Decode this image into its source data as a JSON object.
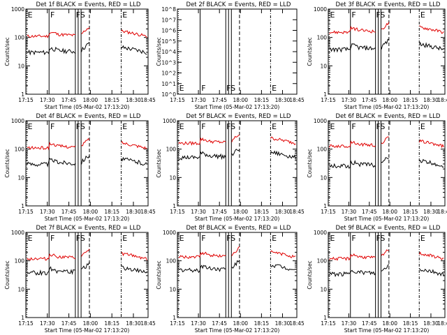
{
  "chart_data": {
    "type": "line",
    "panels": [
      {
        "title": "Det 1f BLACK = Events, RED = LLD",
        "ylim_exp": [
          0,
          3
        ],
        "ytick_labels": [
          "1",
          "10",
          "100",
          "1000"
        ],
        "ylabel": "Counts/sec",
        "xlabel": "Start Time (05-Mar-02 17:13:20)",
        "xtick_labels": [
          "17:15",
          "17:30",
          "17:45",
          "18:00",
          "18:15",
          "18:30",
          "18:45"
        ],
        "markers": [
          "E",
          "F",
          "F",
          "S",
          "E"
        ],
        "black_level": 35,
        "red_level": 130,
        "has_data": true
      },
      {
        "title": "Det 2f BLACK = Events, RED = LLD",
        "ylim_exp": [
          0,
          8
        ],
        "ytick_labels": [
          "10^0",
          "10^1",
          "10^2",
          "10^3",
          "10^4",
          "10^5",
          "10^6",
          "10^7",
          "10^8"
        ],
        "ylabel": "Counts/sec",
        "xlabel": "Start Time (05-Mar-02 17:13:20)",
        "xtick_labels": [
          "17:15",
          "17:30",
          "17:45",
          "18:00",
          "18:15",
          "18:30",
          "18:45"
        ],
        "markers": [
          "E",
          "F",
          "F",
          "S",
          "E"
        ],
        "black_level": 0,
        "red_level": 0,
        "has_data": false
      },
      {
        "title": "Det 3f BLACK = Events, RED = LLD",
        "ylim_exp": [
          0,
          3
        ],
        "ytick_labels": [
          "1",
          "10",
          "100",
          "1000"
        ],
        "ylabel": "Counts/sec",
        "xlabel": "Start Time (05-Mar-02 17:13:20)",
        "xtick_labels": [
          "17:15",
          "17:30",
          "17:45",
          "18:00",
          "18:15",
          "18:30",
          "18:45"
        ],
        "markers": [
          "E",
          "F",
          "F",
          "S",
          "E"
        ],
        "black_level": 45,
        "red_level": 180,
        "has_data": true
      },
      {
        "title": "Det 4f BLACK = Events, RED = LLD",
        "ylim_exp": [
          0,
          3
        ],
        "ytick_labels": [
          "1",
          "10",
          "100",
          "1000"
        ],
        "ylabel": "Counts/sec",
        "xlabel": "Start Time (05-Mar-02 17:13:20)",
        "xtick_labels": [
          "17:15",
          "17:30",
          "17:45",
          "18:00",
          "18:15",
          "18:30",
          "18:45"
        ],
        "markers": [
          "E",
          "F",
          "F",
          "S",
          "E"
        ],
        "black_level": 35,
        "red_level": 130,
        "has_data": true
      },
      {
        "title": "Det 5f BLACK = Events, RED = LLD",
        "ylim_exp": [
          0,
          3
        ],
        "ytick_labels": [
          "1",
          "10",
          "100",
          "1000"
        ],
        "ylabel": "Counts/sec",
        "xlabel": "Start Time (05-Mar-02 17:13:20)",
        "xtick_labels": [
          "17:15",
          "17:30",
          "17:45",
          "18:00",
          "18:15",
          "18:30",
          "18:45"
        ],
        "markers": [
          "E",
          "F",
          "F",
          "S",
          "E"
        ],
        "black_level": 60,
        "red_level": 190,
        "has_data": true
      },
      {
        "title": "Det 6f BLACK = Events, RED = LLD",
        "ylim_exp": [
          0,
          3
        ],
        "ytick_labels": [
          "1",
          "10",
          "100",
          "1000"
        ],
        "ylabel": "Counts/sec",
        "xlabel": "Start Time (05-Mar-02 17:13:20)",
        "xtick_labels": [
          "17:15",
          "17:30",
          "17:45",
          "18:00",
          "18:15",
          "18:30",
          "18:45"
        ],
        "markers": [
          "E",
          "F",
          "F",
          "S",
          "E"
        ],
        "black_level": 30,
        "red_level": 150,
        "has_data": true
      },
      {
        "title": "Det 7f BLACK = Events, RED = LLD",
        "ylim_exp": [
          0,
          3
        ],
        "ytick_labels": [
          "1",
          "10",
          "100",
          "1000"
        ],
        "ylabel": "Counts/sec",
        "xlabel": "Start Time (05-Mar-02 17:13:20)",
        "xtick_labels": [
          "17:15",
          "17:30",
          "17:45",
          "18:00",
          "18:15",
          "18:30",
          "18:45"
        ],
        "markers": [
          "E",
          "F",
          "F",
          "S",
          "E"
        ],
        "black_level": 45,
        "red_level": 140,
        "has_data": true
      },
      {
        "title": "Det 8f BLACK = Events, RED = LLD",
        "ylim_exp": [
          0,
          3
        ],
        "ytick_labels": [
          "1",
          "10",
          "100",
          "1000"
        ],
        "ylabel": "Counts/sec",
        "xlabel": "Start Time (05-Mar-02 17:13:20)",
        "xtick_labels": [
          "17:15",
          "17:30",
          "17:45",
          "18:00",
          "18:15",
          "18:30",
          "18:45"
        ],
        "markers": [
          "E",
          "F",
          "F",
          "S",
          "E"
        ],
        "black_level": 55,
        "red_level": 160,
        "has_data": true
      },
      {
        "title": "Det 9f BLACK = Events, RED = LLD",
        "ylim_exp": [
          0,
          3
        ],
        "ytick_labels": [
          "1",
          "10",
          "100",
          "1000"
        ],
        "ylabel": "Counts/sec",
        "xlabel": "Start Time (05-Mar-02 17:13:20)",
        "xtick_labels": [
          "17:15",
          "17:30",
          "17:45",
          "18:00",
          "18:15",
          "18:30",
          "18:45"
        ],
        "markers": [
          "E",
          "F",
          "F",
          "S",
          "E"
        ],
        "black_level": 40,
        "red_level": 140,
        "has_data": true
      }
    ],
    "series_colors": {
      "events": "#000000",
      "lld": "#e00000"
    },
    "axis_color": "#000000",
    "background": "#ffffff"
  }
}
